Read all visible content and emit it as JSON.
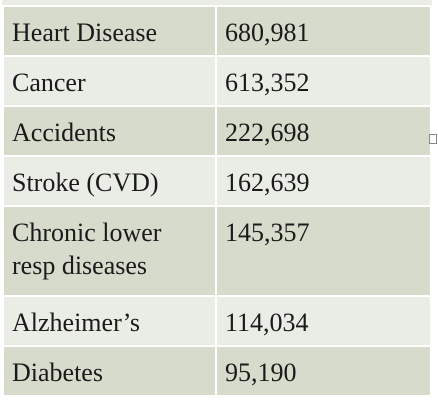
{
  "table": {
    "rows": [
      [
        "Heart Disease",
        "680,981"
      ],
      [
        "Cancer",
        "613,352"
      ],
      [
        "Accidents",
        "222,698"
      ],
      [
        "Stroke (CVD)",
        "162,639"
      ],
      [
        "Chronic lower resp diseases",
        "145,357"
      ],
      [
        "Alzheimer’s",
        "114,034"
      ],
      [
        "Diabetes",
        "95,190"
      ]
    ]
  }
}
